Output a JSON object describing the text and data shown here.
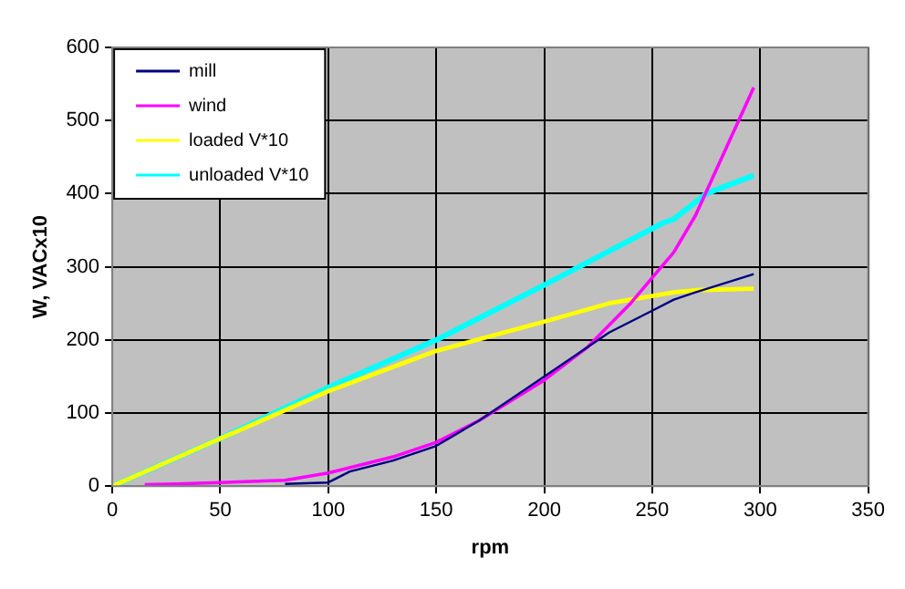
{
  "chart_data": {
    "type": "line",
    "xlabel": "rpm",
    "ylabel": "W, VACx10",
    "xlim": [
      0,
      350
    ],
    "xticks": [
      0,
      50,
      100,
      150,
      200,
      250,
      300,
      350
    ],
    "ylim": [
      0,
      600
    ],
    "yticks": [
      0,
      100,
      200,
      300,
      400,
      500,
      600
    ],
    "grid": true,
    "legend": "top left",
    "marker": "none",
    "series": [
      {
        "name": "mill",
        "color": "#000080",
        "x": [
          80,
          100,
          110,
          130,
          150,
          170,
          200,
          230,
          250,
          260,
          270,
          297
        ],
        "values": [
          3,
          5,
          20,
          35,
          55,
          90,
          150,
          210,
          240,
          255,
          265,
          290
        ]
      },
      {
        "name": "wind",
        "color": "#ff00ff",
        "x": [
          15,
          30,
          50,
          80,
          100,
          130,
          150,
          170,
          200,
          220,
          240,
          260,
          270,
          297
        ],
        "values": [
          2,
          3,
          5,
          8,
          18,
          40,
          60,
          90,
          145,
          190,
          250,
          320,
          370,
          545
        ]
      },
      {
        "name": "loaded V*10",
        "color": "#ffff00",
        "x": [
          0,
          50,
          100,
          150,
          200,
          230,
          260,
          270,
          297
        ],
        "values": [
          0,
          65,
          130,
          185,
          225,
          250,
          265,
          268,
          270
        ]
      },
      {
        "name": "unloaded V*10",
        "color": "#00ffff",
        "x": [
          0,
          50,
          75,
          100,
          150,
          200,
          255,
          260,
          275,
          297
        ],
        "values": [
          0,
          65,
          100,
          135,
          200,
          275,
          360,
          365,
          400,
          425
        ]
      }
    ]
  }
}
